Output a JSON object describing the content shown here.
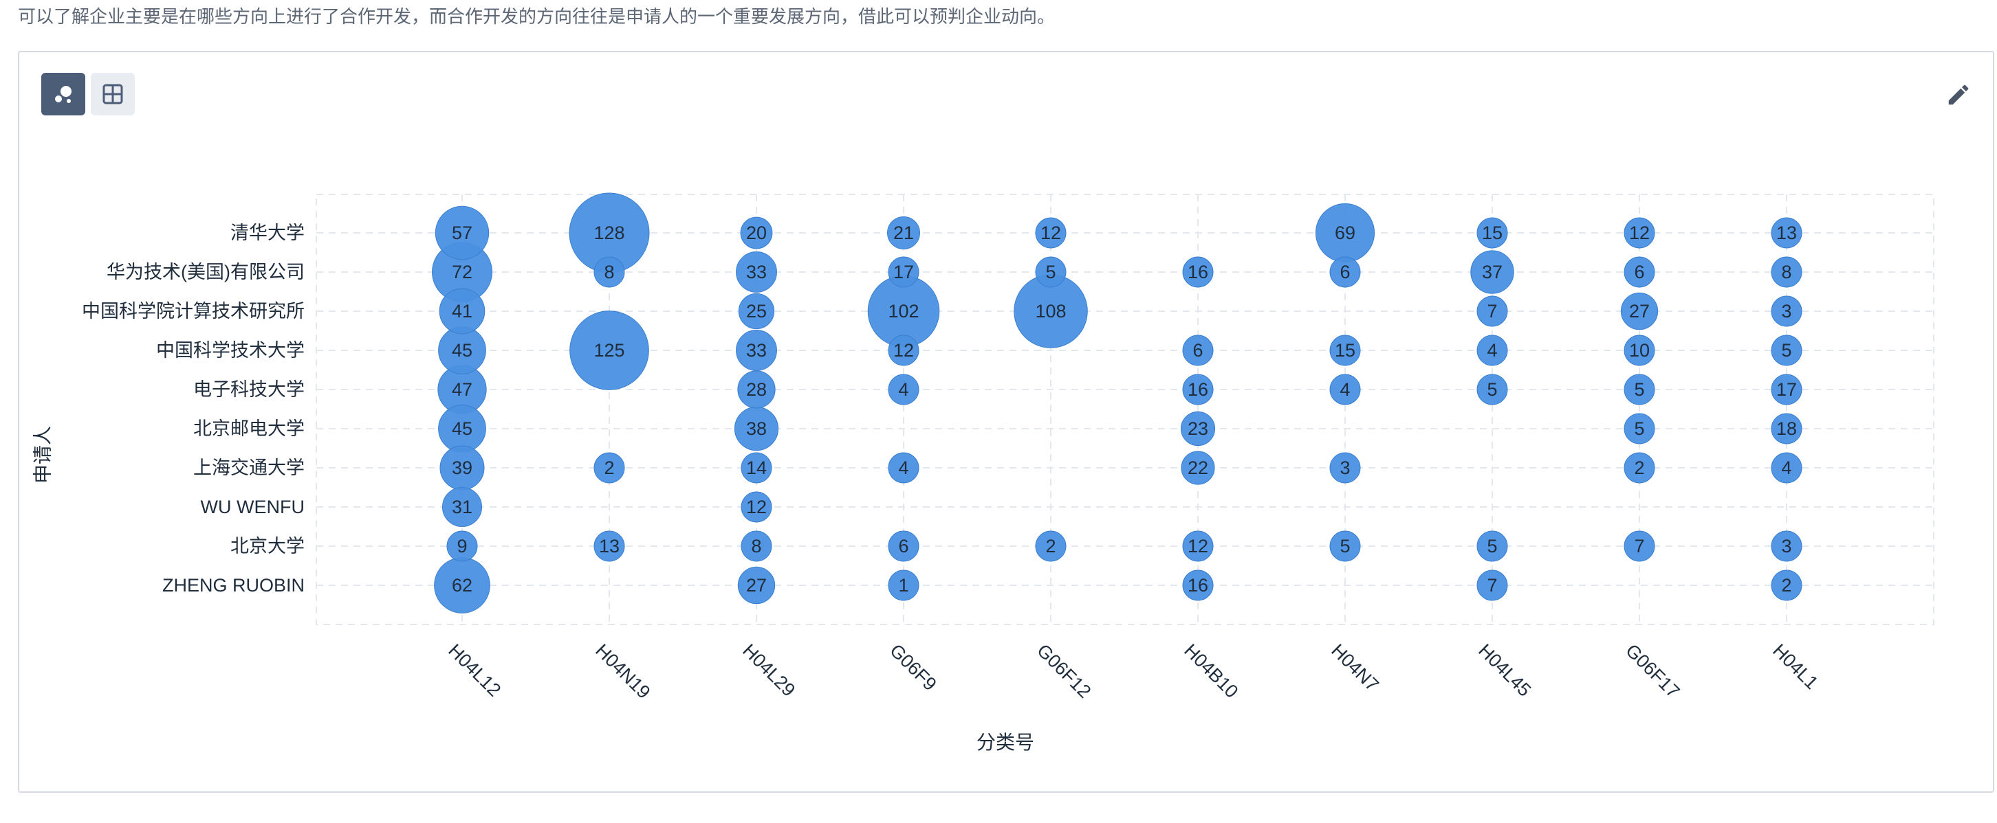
{
  "intro_text": "可以了解企业主要是在哪些方向上进行了合作开发，而合作开发的方向往往是申请人的一个重要发展方向，借此可以预判企业动向。",
  "toolbar": {
    "bubble_view_icon": "bubble-chart-icon",
    "table_view_icon": "grid-table-icon",
    "edit_icon": "pencil-icon"
  },
  "colors": {
    "bubble": "#4a90e2",
    "bubble_stroke": "#3a7fd0",
    "grid": "#e3e7ee",
    "toggle_active": "#4c5d78",
    "toggle_inactive": "#e9ecf1"
  },
  "chart_data": {
    "type": "scatter",
    "subtype": "bubble",
    "xlabel": "分类号",
    "ylabel": "申请人",
    "x_categories": [
      "H04L12",
      "H04N19",
      "H04L29",
      "G06F9",
      "G06F12",
      "H04B10",
      "H04N7",
      "H04L45",
      "G06F17",
      "H04L1"
    ],
    "y_categories": [
      "清华大学",
      "华为技术(美国)有限公司",
      "中国科学院计算技术研究所",
      "中国科学技术大学",
      "电子科技大学",
      "北京邮电大学",
      "上海交通大学",
      "WU WENFU",
      "北京大学",
      "ZHENG RUOBIN"
    ],
    "grid": true,
    "points": [
      {
        "x": "H04L12",
        "y": "清华大学",
        "value": 57
      },
      {
        "x": "H04N19",
        "y": "清华大学",
        "value": 128
      },
      {
        "x": "H04L29",
        "y": "清华大学",
        "value": 20
      },
      {
        "x": "G06F9",
        "y": "清华大学",
        "value": 21
      },
      {
        "x": "G06F12",
        "y": "清华大学",
        "value": 12
      },
      {
        "x": "H04N7",
        "y": "清华大学",
        "value": 69
      },
      {
        "x": "H04L45",
        "y": "清华大学",
        "value": 15
      },
      {
        "x": "G06F17",
        "y": "清华大学",
        "value": 12
      },
      {
        "x": "H04L1",
        "y": "清华大学",
        "value": 13
      },
      {
        "x": "H04L12",
        "y": "华为技术(美国)有限公司",
        "value": 72
      },
      {
        "x": "H04N19",
        "y": "华为技术(美国)有限公司",
        "value": 8
      },
      {
        "x": "H04L29",
        "y": "华为技术(美国)有限公司",
        "value": 33
      },
      {
        "x": "G06F9",
        "y": "华为技术(美国)有限公司",
        "value": 17
      },
      {
        "x": "G06F12",
        "y": "华为技术(美国)有限公司",
        "value": 5
      },
      {
        "x": "H04B10",
        "y": "华为技术(美国)有限公司",
        "value": 16
      },
      {
        "x": "H04N7",
        "y": "华为技术(美国)有限公司",
        "value": 6
      },
      {
        "x": "H04L45",
        "y": "华为技术(美国)有限公司",
        "value": 37
      },
      {
        "x": "G06F17",
        "y": "华为技术(美国)有限公司",
        "value": 6
      },
      {
        "x": "H04L1",
        "y": "华为技术(美国)有限公司",
        "value": 8
      },
      {
        "x": "H04L12",
        "y": "中国科学院计算技术研究所",
        "value": 41
      },
      {
        "x": "H04L29",
        "y": "中国科学院计算技术研究所",
        "value": 25
      },
      {
        "x": "G06F9",
        "y": "中国科学院计算技术研究所",
        "value": 102
      },
      {
        "x": "G06F12",
        "y": "中国科学院计算技术研究所",
        "value": 108
      },
      {
        "x": "H04L45",
        "y": "中国科学院计算技术研究所",
        "value": 7
      },
      {
        "x": "G06F17",
        "y": "中国科学院计算技术研究所",
        "value": 27
      },
      {
        "x": "H04L1",
        "y": "中国科学院计算技术研究所",
        "value": 3
      },
      {
        "x": "H04L12",
        "y": "中国科学技术大学",
        "value": 45
      },
      {
        "x": "H04N19",
        "y": "中国科学技术大学",
        "value": 125
      },
      {
        "x": "H04L29",
        "y": "中国科学技术大学",
        "value": 33
      },
      {
        "x": "G06F9",
        "y": "中国科学技术大学",
        "value": 12
      },
      {
        "x": "H04B10",
        "y": "中国科学技术大学",
        "value": 6
      },
      {
        "x": "H04N7",
        "y": "中国科学技术大学",
        "value": 15
      },
      {
        "x": "H04L45",
        "y": "中国科学技术大学",
        "value": 4
      },
      {
        "x": "G06F17",
        "y": "中国科学技术大学",
        "value": 10
      },
      {
        "x": "H04L1",
        "y": "中国科学技术大学",
        "value": 5
      },
      {
        "x": "H04L12",
        "y": "电子科技大学",
        "value": 47
      },
      {
        "x": "H04L29",
        "y": "电子科技大学",
        "value": 28
      },
      {
        "x": "G06F9",
        "y": "电子科技大学",
        "value": 4
      },
      {
        "x": "H04B10",
        "y": "电子科技大学",
        "value": 16
      },
      {
        "x": "H04N7",
        "y": "电子科技大学",
        "value": 4
      },
      {
        "x": "H04L45",
        "y": "电子科技大学",
        "value": 5
      },
      {
        "x": "G06F17",
        "y": "电子科技大学",
        "value": 5
      },
      {
        "x": "H04L1",
        "y": "电子科技大学",
        "value": 17
      },
      {
        "x": "H04L12",
        "y": "北京邮电大学",
        "value": 45
      },
      {
        "x": "H04L29",
        "y": "北京邮电大学",
        "value": 38
      },
      {
        "x": "H04B10",
        "y": "北京邮电大学",
        "value": 23
      },
      {
        "x": "G06F17",
        "y": "北京邮电大学",
        "value": 5
      },
      {
        "x": "H04L1",
        "y": "北京邮电大学",
        "value": 18
      },
      {
        "x": "H04L12",
        "y": "上海交通大学",
        "value": 39
      },
      {
        "x": "H04N19",
        "y": "上海交通大学",
        "value": 2
      },
      {
        "x": "H04L29",
        "y": "上海交通大学",
        "value": 14
      },
      {
        "x": "G06F9",
        "y": "上海交通大学",
        "value": 4
      },
      {
        "x": "H04B10",
        "y": "上海交通大学",
        "value": 22
      },
      {
        "x": "H04N7",
        "y": "上海交通大学",
        "value": 3
      },
      {
        "x": "G06F17",
        "y": "上海交通大学",
        "value": 2
      },
      {
        "x": "H04L1",
        "y": "上海交通大学",
        "value": 4
      },
      {
        "x": "H04L12",
        "y": "WU WENFU",
        "value": 31
      },
      {
        "x": "H04L29",
        "y": "WU WENFU",
        "value": 12
      },
      {
        "x": "H04L12",
        "y": "北京大学",
        "value": 9
      },
      {
        "x": "H04N19",
        "y": "北京大学",
        "value": 13
      },
      {
        "x": "H04L29",
        "y": "北京大学",
        "value": 8
      },
      {
        "x": "G06F9",
        "y": "北京大学",
        "value": 6
      },
      {
        "x": "G06F12",
        "y": "北京大学",
        "value": 2
      },
      {
        "x": "H04B10",
        "y": "北京大学",
        "value": 12
      },
      {
        "x": "H04N7",
        "y": "北京大学",
        "value": 5
      },
      {
        "x": "H04L45",
        "y": "北京大学",
        "value": 5
      },
      {
        "x": "G06F17",
        "y": "北京大学",
        "value": 7
      },
      {
        "x": "H04L1",
        "y": "北京大学",
        "value": 3
      },
      {
        "x": "H04L12",
        "y": "ZHENG RUOBIN",
        "value": 62
      },
      {
        "x": "H04L29",
        "y": "ZHENG RUOBIN",
        "value": 27
      },
      {
        "x": "G06F9",
        "y": "ZHENG RUOBIN",
        "value": 1
      },
      {
        "x": "H04B10",
        "y": "ZHENG RUOBIN",
        "value": 16
      },
      {
        "x": "H04L45",
        "y": "ZHENG RUOBIN",
        "value": 7
      },
      {
        "x": "H04L1",
        "y": "ZHENG RUOBIN",
        "value": 2
      }
    ]
  }
}
